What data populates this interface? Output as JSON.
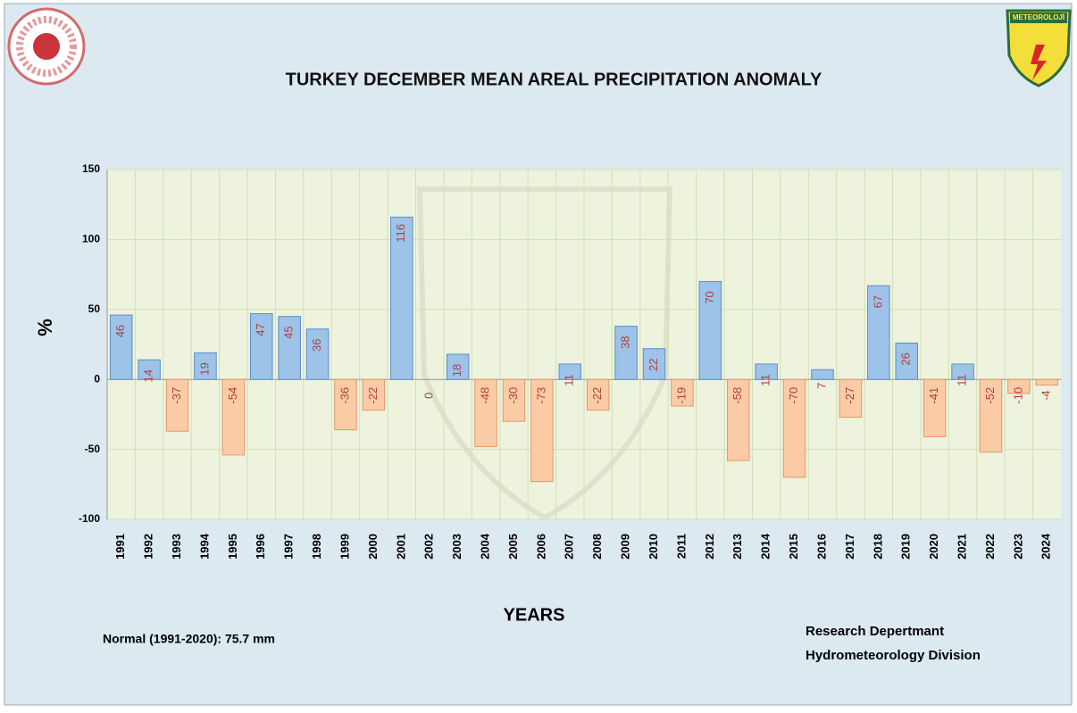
{
  "chart_data": {
    "type": "bar",
    "title": "TURKEY DECEMBER MEAN AREAL PRECIPITATION ANOMALY",
    "y_label": "%",
    "x_label": "YEARS",
    "note": "Normal (1991-2020): 75.7 mm",
    "credit": [
      "Research Depertmant",
      "Hydrometeorology Division"
    ],
    "logo_text": "METEOROLOJİ",
    "categories": [
      "1991",
      "1992",
      "1993",
      "1994",
      "1995",
      "1996",
      "1997",
      "1998",
      "1999",
      "2000",
      "2001",
      "2002",
      "2003",
      "2004",
      "2005",
      "2006",
      "2007",
      "2008",
      "2009",
      "2010",
      "2011",
      "2012",
      "2013",
      "2014",
      "2015",
      "2016",
      "2017",
      "2018",
      "2019",
      "2020",
      "2021",
      "2022",
      "2023",
      "2024"
    ],
    "values": [
      46,
      14,
      -37,
      19,
      -54,
      47,
      45,
      36,
      -36,
      -22,
      116,
      0,
      18,
      -48,
      -30,
      -73,
      11,
      -22,
      38,
      22,
      -19,
      70,
      -58,
      11,
      -70,
      7,
      -27,
      67,
      26,
      -41,
      11,
      -52,
      -10,
      -4
    ],
    "positive_color": "#9dc3e8",
    "negative_color": "#fbcba6",
    "label_color": "#b0403c",
    "ylim": [
      -100,
      150
    ],
    "yticks": [
      -100,
      -50,
      0,
      50,
      100,
      150
    ],
    "grid": true
  }
}
